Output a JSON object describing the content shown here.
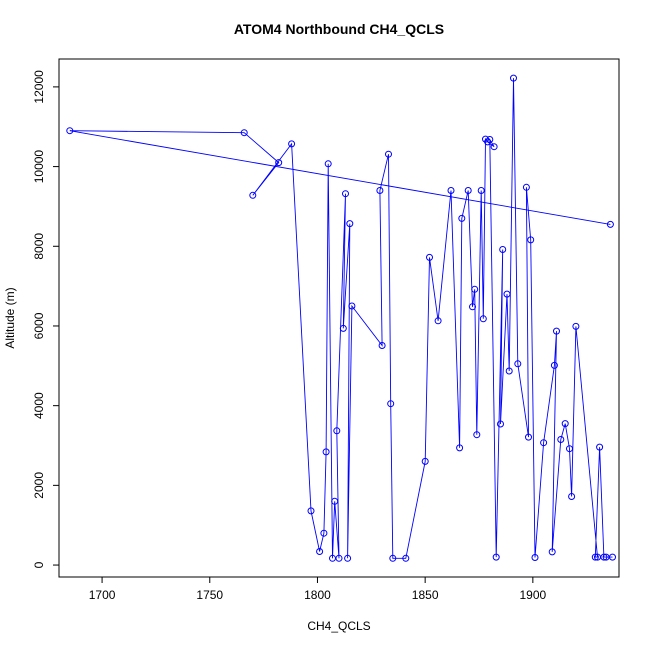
{
  "chart_data": {
    "type": "scatter",
    "title": "ATOM4 Northbound CH4_QCLS",
    "xlabel": "CH4_QCLS",
    "ylabel": "Altitude (m)",
    "xlim": [
      1680,
      1940
    ],
    "ylim": [
      -300,
      12700
    ],
    "xticks": [
      1700,
      1750,
      1800,
      1850,
      1900
    ],
    "yticks": [
      0,
      2000,
      4000,
      6000,
      8000,
      10000,
      12000
    ],
    "series_color": "#0000ff",
    "markers": "open-circle",
    "connected": true,
    "series": [
      {
        "x": [
          1936,
          1685,
          1766,
          1782,
          1770,
          1788,
          1797,
          1801,
          1803,
          1804,
          1805,
          1807,
          1808,
          1810,
          1809,
          1813,
          1812,
          1815,
          1814,
          1816,
          1830,
          1829,
          1833,
          1834,
          1835,
          1841,
          1850,
          1852,
          1856,
          1862,
          1866,
          1867,
          1870,
          1872,
          1873,
          1874,
          1876,
          1877,
          1878,
          1879,
          1882,
          1880,
          1883,
          1886,
          1885,
          1888,
          1889,
          1891,
          1893,
          1898,
          1897,
          1899,
          1901,
          1905,
          1910,
          1911,
          1909,
          1913,
          1915,
          1917,
          1918,
          1920,
          1930,
          1929,
          1931,
          1933,
          1934,
          1937
        ],
        "y": [
          8550,
          10900,
          10850,
          10100,
          9280,
          10570,
          1360,
          340,
          800,
          2840,
          10070,
          170,
          1600,
          170,
          3370,
          9320,
          5940,
          8570,
          170,
          6500,
          5510,
          9400,
          10310,
          4050,
          170,
          170,
          2600,
          7720,
          6130,
          9400,
          2940,
          8700,
          9400,
          6480,
          6920,
          3270,
          9400,
          6180,
          10690,
          10620,
          10500,
          10680,
          200,
          7920,
          3540,
          6800,
          4870,
          12220,
          5050,
          3210,
          9480,
          8160,
          190,
          3070,
          5010,
          5870,
          330,
          3150,
          3550,
          2920,
          1720,
          5990,
          200,
          200,
          2960,
          200,
          200,
          200
        ]
      }
    ]
  }
}
